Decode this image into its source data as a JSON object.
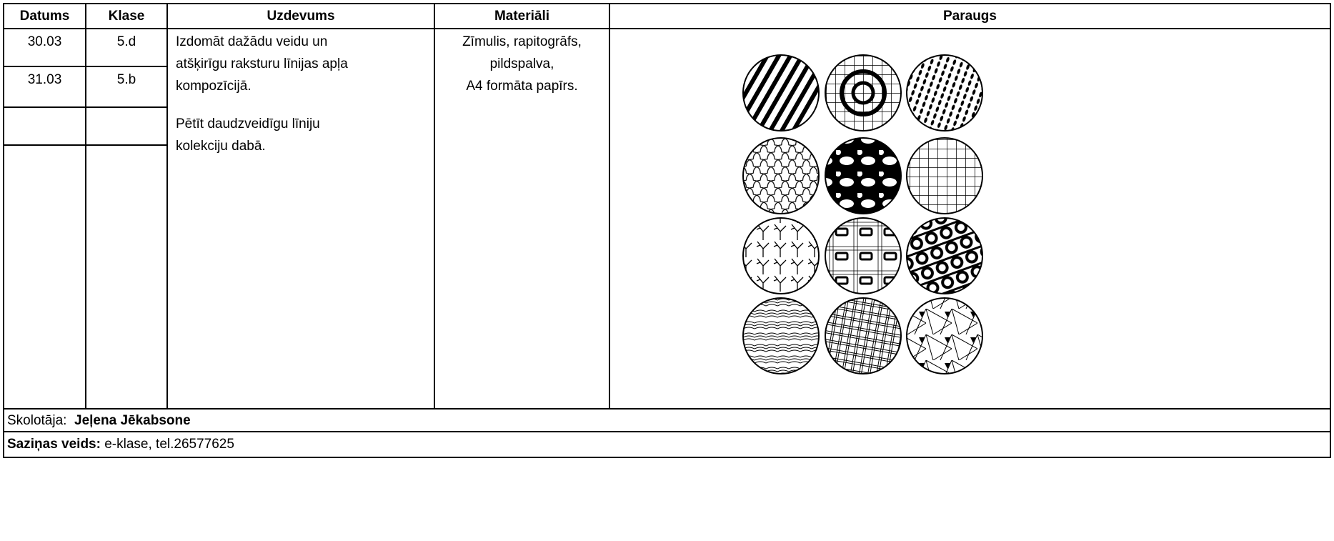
{
  "header": {
    "columns": [
      "Datums",
      "Klase",
      "Uzdevums",
      "Materiāli",
      "Paraugs"
    ]
  },
  "rows": [
    [
      "30.03",
      "5.d"
    ],
    [
      "31.03",
      "5.b"
    ]
  ],
  "task": [
    [
      "Izdomāt  dažādu veidu un",
      "atšķirīgu raksturu līnijas apļa",
      "kompozīcijā."
    ],
    [
      "Pētīt daudzveidīgu līniju",
      "kolekciju dabā."
    ]
  ],
  "materials": [
    "Zīmulis, rapitogrāfs,",
    "pildspalva,",
    "A4 formāta papīrs."
  ],
  "footer": {
    "teacher_label": "Skolotāja:",
    "teacher_name": "Jeļena Jēkabsone",
    "contact_label": "Saziņas veids:",
    "contact_value": "e-klase, tel.26577625"
  }
}
